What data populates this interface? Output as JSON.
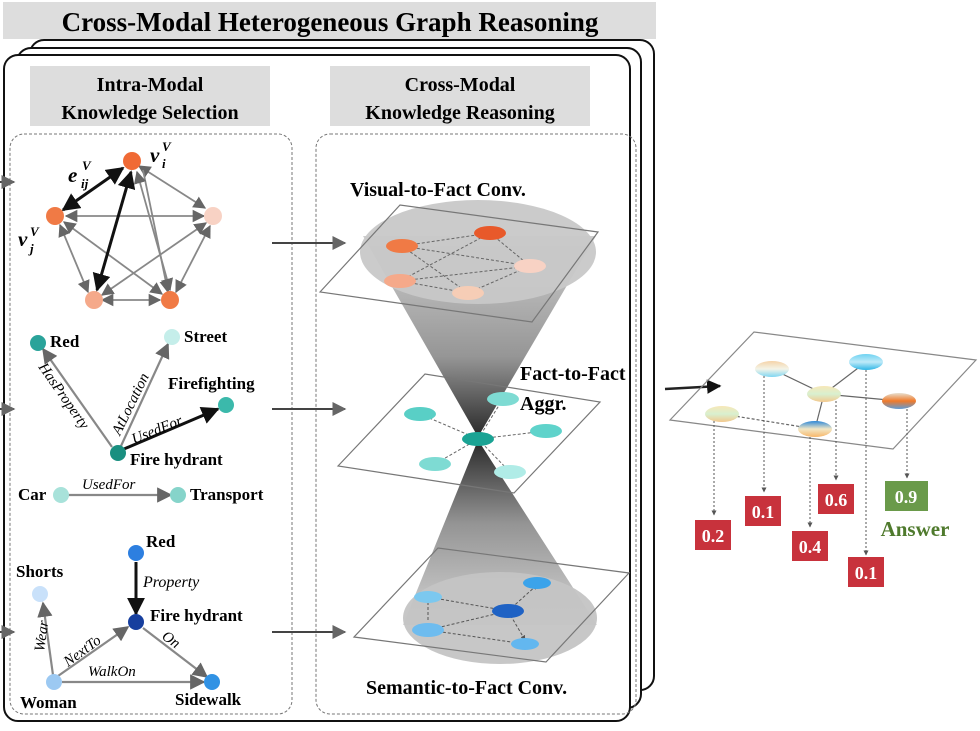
{
  "title": "Cross-Modal Heterogeneous Graph Reasoning",
  "intra_panel": {
    "line1": "Intra-Modal",
    "line2": "Knowledge Selection"
  },
  "cross_panel": {
    "line1": "Cross-Modal",
    "line2": "Knowledge Reasoning"
  },
  "visual_graph": {
    "e_ij": "e",
    "e_sub": "ij",
    "e_sup": "V",
    "v_i": "v",
    "v_i_sub": "i",
    "v_i_sup": "V",
    "v_j": "v",
    "v_j_sub": "j",
    "v_j_sup": "V"
  },
  "fact_graph": {
    "red": "Red",
    "street": "Street",
    "firefighting": "Firefighting",
    "fire_hydrant": "Fire hydrant",
    "has_property": "HasProperty",
    "at_location": "AtLocation",
    "used_for": "UsedFor",
    "car": "Car",
    "transport": "Transport",
    "used_for_2": "UsedFor"
  },
  "semantic_graph": {
    "red": "Red",
    "property": "Property",
    "shorts": "Shorts",
    "fire_hydrant": "Fire hydrant",
    "wear": "Wear",
    "next_to": "NextTo",
    "on": "On",
    "walk_on": "WalkOn",
    "woman": "Woman",
    "sidewalk": "Sidewalk"
  },
  "layers": {
    "visual_to_fact": "Visual-to-Fact Conv.",
    "fact_to_fact_1": "Fact-to-Fact",
    "fact_to_fact_2": "Aggr.",
    "semantic_to_fact": "Semantic-to-Fact Conv."
  },
  "scores": [
    "0.2",
    "0.1",
    "0.4",
    "0.6",
    "0.1",
    "0.9"
  ],
  "answer_label": "Answer",
  "colors": {
    "score_red": "#c8323c",
    "score_green": "#6a9a4a",
    "answer_text": "#4f7a2d",
    "title_bg": "#dddddd"
  }
}
